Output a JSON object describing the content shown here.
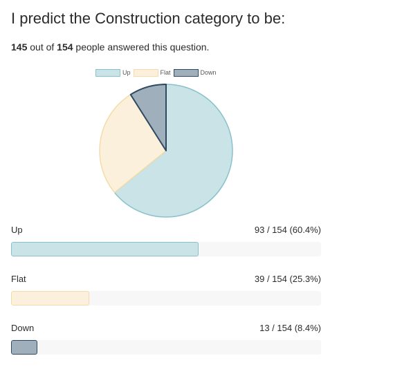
{
  "title": "I predict the Construction category to be:",
  "summary": {
    "answered": "145",
    "out_of_text": " out of ",
    "total": "154",
    "suffix": " people answered this question."
  },
  "legend": [
    {
      "label": "Up",
      "color": "#c9e3e7",
      "border": "#88c1ca"
    },
    {
      "label": "Flat",
      "color": "#fbf0db",
      "border": "#f4dcaa"
    },
    {
      "label": "Down",
      "color": "#9fafbb",
      "border": "#2f4a60"
    }
  ],
  "chart_data": {
    "type": "pie",
    "labels": [
      "Up",
      "Flat",
      "Down"
    ],
    "values": [
      93,
      39,
      13
    ],
    "legend_position": "top"
  },
  "results": [
    {
      "label": "Up",
      "value_text": "93 / 154 (60.4%)",
      "fraction": 0.604,
      "color": "#c9e3e7",
      "border": "#88c1ca"
    },
    {
      "label": "Flat",
      "value_text": "39 / 154 (25.3%)",
      "fraction": 0.253,
      "color": "#fbf0db",
      "border": "#f4dcaa"
    },
    {
      "label": "Down",
      "value_text": "13 / 154 (8.4%)",
      "fraction": 0.084,
      "color": "#9fafbb",
      "border": "#2f4a60"
    }
  ]
}
